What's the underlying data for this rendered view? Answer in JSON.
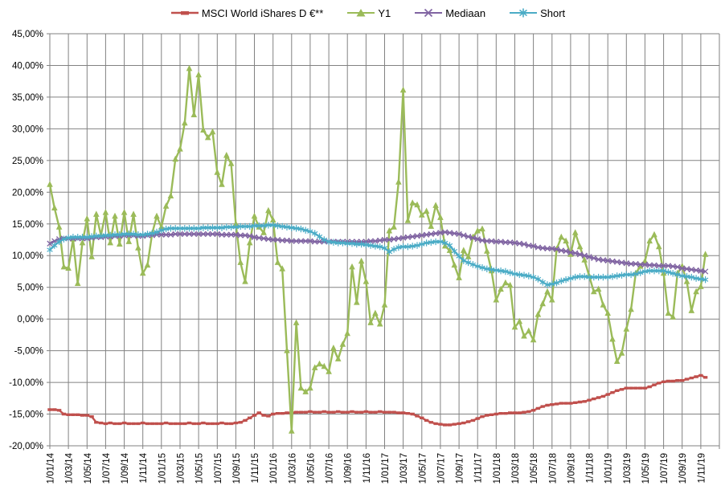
{
  "chart_data": {
    "type": "line",
    "title": "",
    "legend_position": "top",
    "grid": "both",
    "x_step_months": 0.5,
    "x_axis": {
      "total_months": 72,
      "tick_interval_months": 2,
      "labels": [
        "1/01/14",
        "1/03/14",
        "1/05/14",
        "1/07/14",
        "1/09/14",
        "1/11/14",
        "1/01/15",
        "1/03/15",
        "1/05/15",
        "1/07/15",
        "1/09/15",
        "1/11/15",
        "1/01/16",
        "1/03/16",
        "1/05/16",
        "1/07/16",
        "1/09/16",
        "1/11/16",
        "1/01/17",
        "1/03/17",
        "1/05/17",
        "1/07/17",
        "1/09/17",
        "1/11/17",
        "1/01/18",
        "1/03/18",
        "1/05/18",
        "1/07/18",
        "1/09/18",
        "1/11/18",
        "1/01/19",
        "1/03/19",
        "1/05/19",
        "1/07/19",
        "1/09/19",
        "1/11/19"
      ]
    },
    "y_axis": {
      "min": -20,
      "max": 45,
      "step": 5,
      "labels": [
        "45,00%",
        "40,00%",
        "35,00%",
        "30,00%",
        "25,00%",
        "20,00%",
        "15,00%",
        "10,00%",
        "5,00%",
        "0,00%",
        "-5,00%",
        "-10,00%",
        "-15,00%",
        "-20,00%"
      ]
    },
    "colors": {
      "grid": "#828282",
      "axis_text": "#000000",
      "background": "#FFFFFF"
    },
    "series": [
      {
        "name": "MSCI World iShares D €**",
        "color": "#C0504D",
        "marker": "dash",
        "line_width": 2.4,
        "values": [
          -14.3,
          -14.3,
          -14.4,
          -15.0,
          -15.1,
          -15.1,
          -15.1,
          -15.2,
          -15.2,
          -15.4,
          -16.3,
          -16.4,
          -16.5,
          -16.4,
          -16.5,
          -16.5,
          -16.4,
          -16.5,
          -16.5,
          -16.5,
          -16.4,
          -16.5,
          -16.5,
          -16.5,
          -16.5,
          -16.4,
          -16.5,
          -16.5,
          -16.5,
          -16.5,
          -16.4,
          -16.5,
          -16.5,
          -16.4,
          -16.5,
          -16.5,
          -16.5,
          -16.4,
          -16.5,
          -16.5,
          -16.4,
          -16.3,
          -16.0,
          -15.6,
          -15.2,
          -14.8,
          -15.2,
          -15.3,
          -15.0,
          -14.9,
          -14.9,
          -14.8,
          -14.8,
          -14.7,
          -14.7,
          -14.7,
          -14.6,
          -14.7,
          -14.7,
          -14.6,
          -14.7,
          -14.7,
          -14.6,
          -14.7,
          -14.7,
          -14.6,
          -14.7,
          -14.7,
          -14.6,
          -14.7,
          -14.7,
          -14.6,
          -14.7,
          -14.7,
          -14.7,
          -14.8,
          -14.8,
          -14.9,
          -15.0,
          -15.3,
          -15.6,
          -16.0,
          -16.3,
          -16.5,
          -16.6,
          -16.7,
          -16.7,
          -16.6,
          -16.5,
          -16.4,
          -16.2,
          -16.0,
          -15.7,
          -15.4,
          -15.2,
          -15.1,
          -15.0,
          -14.9,
          -14.9,
          -14.8,
          -14.8,
          -14.8,
          -14.7,
          -14.6,
          -14.4,
          -14.1,
          -13.8,
          -13.6,
          -13.5,
          -13.4,
          -13.3,
          -13.3,
          -13.3,
          -13.2,
          -13.1,
          -13.0,
          -12.8,
          -12.6,
          -12.4,
          -12.2,
          -11.9,
          -11.6,
          -11.3,
          -11.1,
          -10.9,
          -10.9,
          -10.9,
          -10.9,
          -10.9,
          -10.7,
          -10.4,
          -10.1,
          -9.9,
          -9.8,
          -9.8,
          -9.7,
          -9.7,
          -9.5,
          -9.3,
          -9.1,
          -8.9,
          -9.2
        ]
      },
      {
        "name": "Y1",
        "color": "#9BBB59",
        "marker": "triangle",
        "line_width": 2.4,
        "values": [
          21.2,
          17.5,
          14.5,
          8.2,
          8.0,
          12.6,
          5.6,
          12.0,
          15.8,
          9.8,
          16.5,
          13.2,
          16.8,
          12.0,
          16.2,
          11.8,
          16.8,
          12.2,
          16.5,
          11.2,
          7.2,
          8.5,
          13.5,
          16.2,
          14.5,
          17.8,
          19.4,
          25.2,
          26.8,
          30.9,
          39.5,
          32.2,
          38.5,
          29.8,
          28.6,
          29.5,
          23.1,
          21.2,
          25.8,
          24.5,
          15.0,
          8.9,
          5.9,
          12.0,
          16.2,
          14.5,
          13.6,
          17.1,
          15.6,
          8.9,
          7.9,
          -5.0,
          -17.7,
          -0.6,
          -10.9,
          -11.5,
          -10.9,
          -7.7,
          -7.1,
          -7.5,
          -8.3,
          -4.6,
          -6.3,
          -4.0,
          -2.3,
          8.2,
          2.6,
          9.1,
          5.9,
          -0.6,
          0.9,
          -0.8,
          2.2,
          13.9,
          14.5,
          21.6,
          36.1,
          15.5,
          18.3,
          18.0,
          16.4,
          17.0,
          14.6,
          17.9,
          16.0,
          11.5,
          10.8,
          8.5,
          6.5,
          10.8,
          9.8,
          12.9,
          13.9,
          14.2,
          10.7,
          7.6,
          3.0,
          4.7,
          5.7,
          5.3,
          -1.3,
          -0.4,
          -2.7,
          -1.9,
          -3.3,
          0.7,
          2.4,
          4.3,
          3.0,
          11.0,
          12.9,
          12.3,
          10.2,
          13.6,
          11.4,
          9.3,
          6.8,
          4.3,
          4.7,
          2.2,
          0.9,
          -3.2,
          -6.7,
          -5.4,
          -1.6,
          1.5,
          7.2,
          8.3,
          9.1,
          12.3,
          13.3,
          11.4,
          7.2,
          0.9,
          0.3,
          7.2,
          8.3,
          5.9,
          1.3,
          4.3,
          5.1,
          10.2
        ]
      },
      {
        "name": "Mediaan",
        "color": "#8064A2",
        "marker": "x",
        "line_width": 2.4,
        "values": [
          11.9,
          12.3,
          12.6,
          12.7,
          12.7,
          12.7,
          12.7,
          12.7,
          12.7,
          12.8,
          12.9,
          12.9,
          13.0,
          13.0,
          13.1,
          13.1,
          13.2,
          13.2,
          13.2,
          13.1,
          13.1,
          13.2,
          13.2,
          13.3,
          13.3,
          13.3,
          13.3,
          13.4,
          13.4,
          13.4,
          13.4,
          13.4,
          13.4,
          13.4,
          13.4,
          13.4,
          13.4,
          13.3,
          13.3,
          13.3,
          13.3,
          13.2,
          13.2,
          13.1,
          12.9,
          12.8,
          12.7,
          12.6,
          12.5,
          12.5,
          12.4,
          12.4,
          12.3,
          12.3,
          12.3,
          12.3,
          12.3,
          12.2,
          12.2,
          12.2,
          12.2,
          12.2,
          12.2,
          12.2,
          12.2,
          12.2,
          12.2,
          12.2,
          12.2,
          12.3,
          12.3,
          12.4,
          12.5,
          12.5,
          12.6,
          12.7,
          12.8,
          12.9,
          13.0,
          13.1,
          13.2,
          13.3,
          13.4,
          13.5,
          13.6,
          13.7,
          13.6,
          13.5,
          13.4,
          13.2,
          13.0,
          12.8,
          12.6,
          12.4,
          12.3,
          12.3,
          12.2,
          12.2,
          12.1,
          12.1,
          12.0,
          11.9,
          11.8,
          11.6,
          11.5,
          11.3,
          11.2,
          11.1,
          11.1,
          11.0,
          10.8,
          10.7,
          10.5,
          10.4,
          10.2,
          10.0,
          9.8,
          9.6,
          9.4,
          9.3,
          9.2,
          9.1,
          9.0,
          8.9,
          8.8,
          8.7,
          8.7,
          8.6,
          8.6,
          8.5,
          8.5,
          8.4,
          8.4,
          8.4,
          8.3,
          8.2,
          8.0,
          7.9,
          7.8,
          7.7,
          7.6,
          7.5
        ]
      },
      {
        "name": "Short",
        "color": "#4BACC6",
        "marker": "star",
        "line_width": 2.4,
        "values": [
          10.9,
          11.6,
          12.2,
          12.6,
          12.8,
          12.9,
          12.9,
          12.9,
          12.9,
          13.0,
          13.1,
          13.1,
          13.2,
          13.2,
          13.3,
          13.3,
          13.4,
          13.4,
          13.4,
          13.3,
          13.3,
          13.4,
          13.5,
          13.7,
          14.0,
          14.2,
          14.3,
          14.3,
          14.3,
          14.3,
          14.3,
          14.3,
          14.3,
          14.4,
          14.4,
          14.4,
          14.4,
          14.4,
          14.5,
          14.5,
          14.5,
          14.6,
          14.6,
          14.6,
          14.7,
          14.7,
          14.7,
          14.8,
          14.8,
          14.7,
          14.6,
          14.5,
          14.4,
          14.3,
          14.2,
          14.0,
          13.8,
          13.5,
          13.0,
          12.5,
          12.2,
          12.1,
          12.0,
          12.0,
          11.9,
          11.9,
          11.8,
          11.8,
          11.7,
          11.6,
          11.5,
          11.4,
          11.2,
          10.6,
          11.0,
          11.3,
          11.4,
          11.4,
          11.5,
          11.6,
          11.8,
          12.0,
          12.1,
          12.2,
          12.2,
          12.0,
          11.6,
          10.7,
          9.9,
          9.2,
          8.9,
          8.6,
          8.3,
          8.1,
          7.9,
          7.8,
          7.7,
          7.6,
          7.5,
          7.3,
          7.1,
          7.0,
          6.9,
          6.8,
          6.6,
          6.3,
          5.8,
          5.4,
          5.5,
          5.7,
          6.0,
          6.2,
          6.4,
          6.6,
          6.7,
          6.7,
          6.6,
          6.6,
          6.6,
          6.6,
          6.6,
          6.7,
          6.8,
          6.9,
          7.0,
          7.0,
          7.1,
          7.3,
          7.5,
          7.6,
          7.6,
          7.6,
          7.6,
          7.4,
          7.2,
          7.0,
          6.8,
          6.7,
          6.6,
          6.4,
          6.3,
          6.2
        ]
      }
    ]
  }
}
